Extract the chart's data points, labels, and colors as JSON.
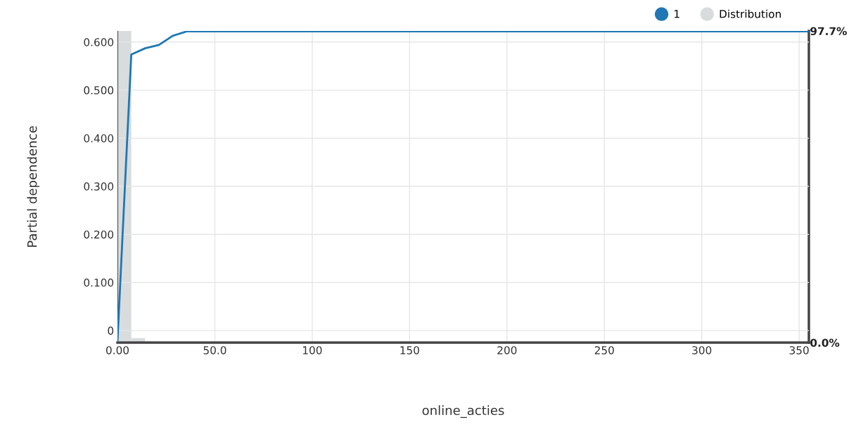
{
  "chart_data": {
    "type": "line",
    "xlabel": "online_acties",
    "ylabel": "Partial dependence",
    "xlim": [
      0,
      355
    ],
    "xticks": [
      {
        "value": 0,
        "label": "0.00"
      },
      {
        "value": 50,
        "label": "50.0"
      },
      100,
      150,
      200,
      250,
      300,
      350
    ],
    "ylim": [
      -0.025,
      0.623
    ],
    "yticks": [
      0,
      {
        "value": 0.1,
        "label": "0.100"
      },
      {
        "value": 0.2,
        "label": "0.200"
      },
      {
        "value": 0.3,
        "label": "0.300"
      },
      {
        "value": 0.4,
        "label": "0.400"
      },
      {
        "value": 0.5,
        "label": "0.500"
      },
      {
        "value": 0.6,
        "label": "0.600"
      }
    ],
    "y2lim": [
      0,
      97.7
    ],
    "y2ticks": [
      {
        "value": 0,
        "label": "0.0%"
      },
      {
        "value": 97.7,
        "label": "97.7%"
      }
    ],
    "grid": true,
    "legend": "top right",
    "series": [
      {
        "name": "1",
        "color": "#1f77b4",
        "x": [
          0,
          7.1,
          14.2,
          21.3,
          28.4,
          35.5,
          355
        ],
        "values": [
          -0.022,
          0.574,
          0.587,
          0.594,
          0.613,
          0.622,
          0.622
        ]
      },
      {
        "name": "Distribution",
        "type": "histogram",
        "axis": "y2",
        "color": "#d9dcdc",
        "bins": [
          0,
          7.1,
          14.2,
          21.3
        ],
        "values": [
          97.7,
          1.4,
          0.3
        ]
      }
    ]
  }
}
